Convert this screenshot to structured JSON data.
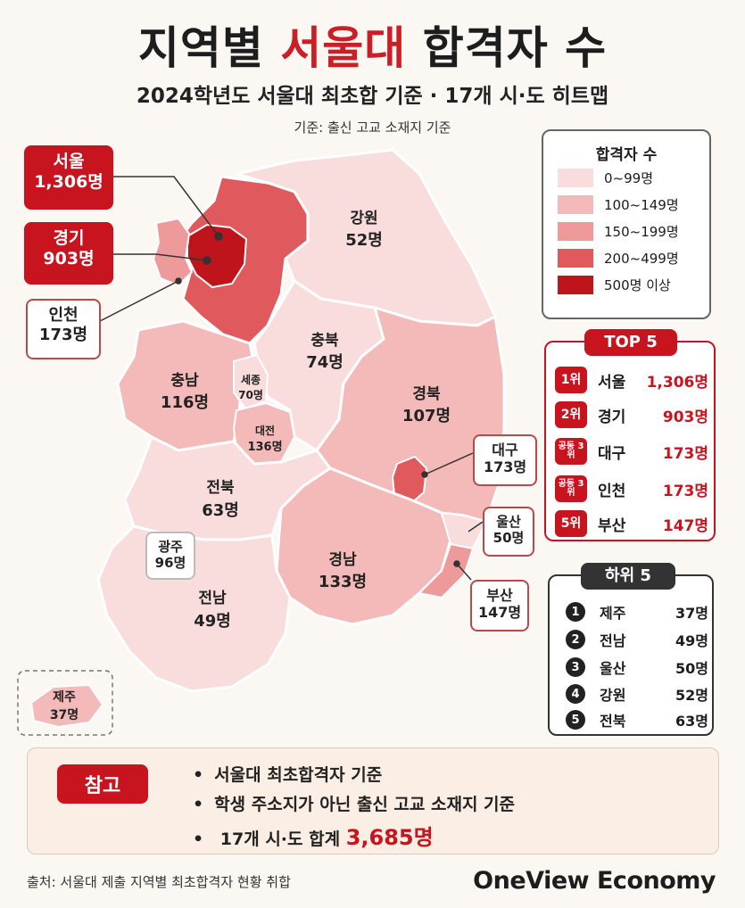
{
  "title": {
    "prefix": "지역별",
    "accent": "서울대",
    "suffix": "합격자 수"
  },
  "subtitle": "2024학년도 서울대 최초합 기준 · 17개 시·도 히트맵",
  "basis": "기준: 출신 고교 소재지 기준",
  "colors": {
    "accent": "#c8141e",
    "bin1": "#f9dcdc",
    "bin2": "#f4b9b9",
    "bin3": "#ee9a9a",
    "bin4": "#e0595c",
    "bin5": "#c0141c"
  },
  "regions": [
    {
      "name": "서울",
      "value": "1,306명"
    },
    {
      "name": "경기",
      "value": "903명"
    },
    {
      "name": "인천",
      "value": "173명"
    },
    {
      "name": "강원",
      "value": "52명"
    },
    {
      "name": "충북",
      "value": "74명"
    },
    {
      "name": "충남",
      "value": "116명"
    },
    {
      "name": "세종",
      "value": "70명"
    },
    {
      "name": "대전",
      "value": "136명"
    },
    {
      "name": "경북",
      "value": "107명"
    },
    {
      "name": "대구",
      "value": "173명"
    },
    {
      "name": "전북",
      "value": "63명"
    },
    {
      "name": "광주",
      "value": "96명"
    },
    {
      "name": "전남",
      "value": "49명"
    },
    {
      "name": "경남",
      "value": "133명"
    },
    {
      "name": "울산",
      "value": "50명"
    },
    {
      "name": "부산",
      "value": "147명"
    },
    {
      "name": "제주",
      "value": "37명"
    }
  ],
  "legend": {
    "title": "합격자 수",
    "items": [
      "0~99명",
      "100~149명",
      "150~199명",
      "200~499명",
      "500명 이상"
    ]
  },
  "top5": {
    "title": "TOP 5",
    "items": [
      {
        "rank": "1위",
        "name": "서울",
        "value": "1,306명"
      },
      {
        "rank": "2위",
        "name": "경기",
        "value": "903명"
      },
      {
        "rank": "공동 3위",
        "name": "대구",
        "value": "173명"
      },
      {
        "rank": "공동 3위",
        "name": "인천",
        "value": "173명"
      },
      {
        "rank": "5위",
        "name": "부산",
        "value": "147명"
      }
    ]
  },
  "bottom5": {
    "title": "하위 5",
    "items": [
      {
        "rank": "1",
        "name": "제주",
        "value": "37명"
      },
      {
        "rank": "2",
        "name": "전남",
        "value": "49명"
      },
      {
        "rank": "3",
        "name": "울산",
        "value": "50명"
      },
      {
        "rank": "4",
        "name": "강원",
        "value": "52명"
      },
      {
        "rank": "5",
        "name": "전북",
        "value": "63명"
      }
    ]
  },
  "notes": {
    "label": "참고",
    "items": [
      "서울대 최초합격자 기준",
      "학생 주소지가 아닌 출신 고교 소재지 기준"
    ],
    "total_label": "17개 시·도 합계",
    "total_value": "3,685명"
  },
  "source": "출처: 서울대 제출 지역별 최초합격자 현황 취합",
  "brand": "OneView Economy"
}
